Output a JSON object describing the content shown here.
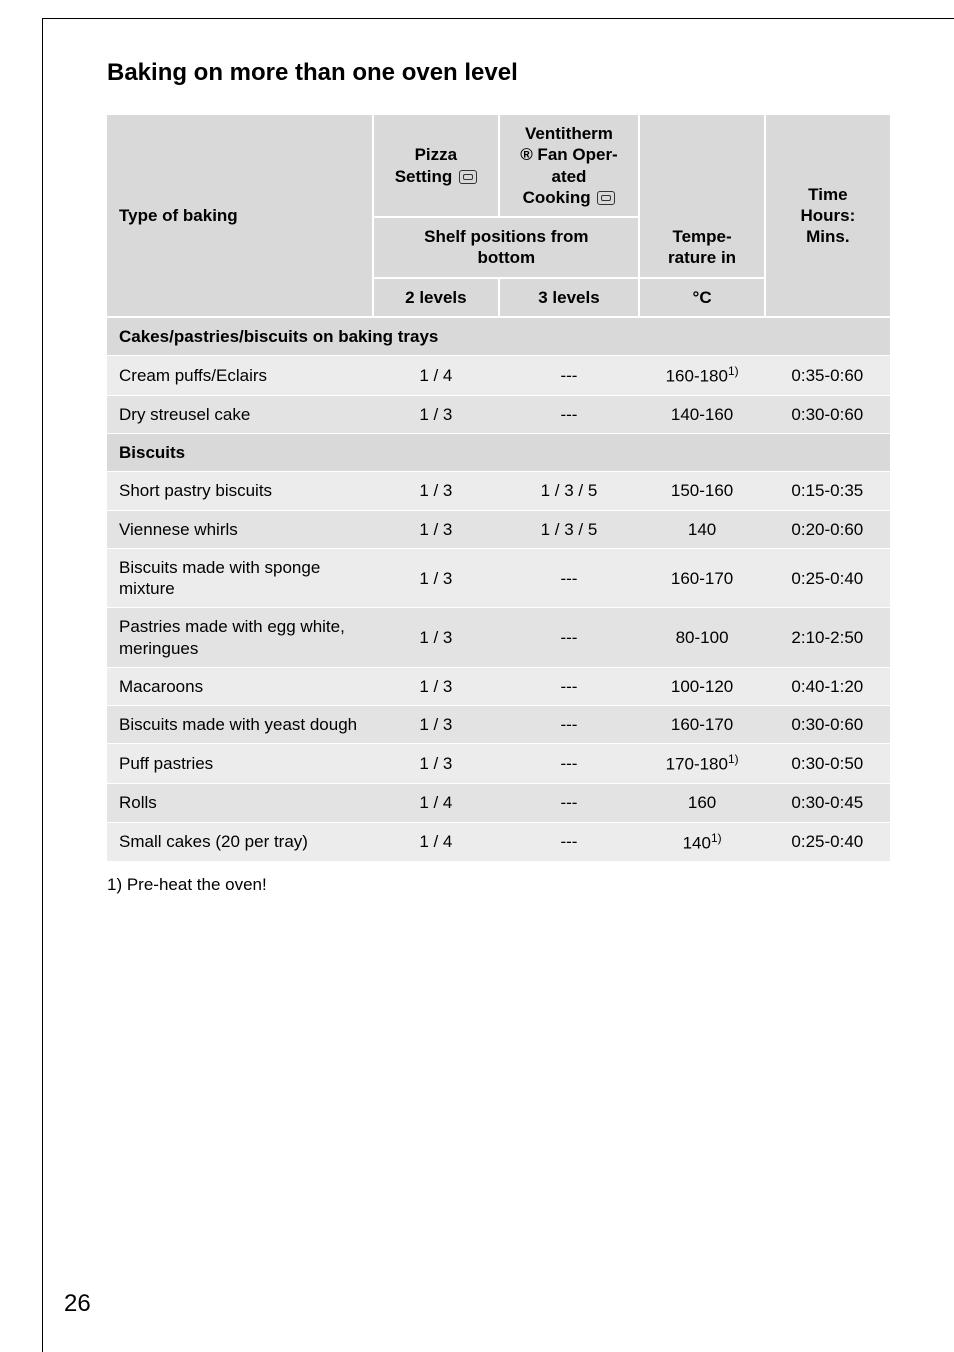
{
  "page": {
    "heading": "Baking on more than one oven level",
    "footnote": "1) Pre-heat the oven!",
    "number": "26"
  },
  "header": {
    "type_of_baking": "Type of baking",
    "pizza_line": "Pizza",
    "setting_word": "Setting",
    "venti_l1": "Ventitherm",
    "venti_l2": "® Fan Oper-",
    "venti_l3": "ated",
    "venti_l4": "Cooking",
    "shelf_line1": "Shelf positions from",
    "shelf_line2": "bottom",
    "temp_l1": "Tempe-",
    "temp_l2": "rature in",
    "temp_l3": "°C",
    "time_l1": "Time",
    "time_l2": "Hours:",
    "time_l3": "Mins.",
    "two_levels": "2 levels",
    "three_levels": "3 levels"
  },
  "sections": {
    "s1": "Cakes/pastries/biscuits on baking trays",
    "s2": "Biscuits"
  },
  "rows": {
    "r1": {
      "name": "Cream puffs/Eclairs",
      "lv2": "1 / 4",
      "lv3": "---",
      "temp": "160-180",
      "sup": "1)",
      "time": "0:35-0:60"
    },
    "r2": {
      "name": "Dry streusel cake",
      "lv2": "1 / 3",
      "lv3": "---",
      "temp": "140-160",
      "time": "0:30-0:60"
    },
    "r3": {
      "name": "Short pastry biscuits",
      "lv2": "1 / 3",
      "lv3": "1 / 3 / 5",
      "temp": "150-160",
      "time": "0:15-0:35"
    },
    "r4": {
      "name": "Viennese whirls",
      "lv2": "1 / 3",
      "lv3": "1 / 3 / 5",
      "temp": "140",
      "time": "0:20-0:60"
    },
    "r5": {
      "name": "Biscuits made with sponge mixture",
      "lv2": "1 / 3",
      "lv3": "---",
      "temp": "160-170",
      "time": "0:25-0:40"
    },
    "r6": {
      "name": "Pastries made with egg white, meringues",
      "lv2": "1 / 3",
      "lv3": "---",
      "temp": "80-100",
      "time": "2:10-2:50"
    },
    "r7": {
      "name": "Macaroons",
      "lv2": "1 / 3",
      "lv3": "---",
      "temp": "100-120",
      "time": "0:40-1:20"
    },
    "r8": {
      "name": "Biscuits made with yeast dough",
      "lv2": "1 / 3",
      "lv3": "---",
      "temp": "160-170",
      "time": "0:30-0:60"
    },
    "r9": {
      "name": "Puff pastries",
      "lv2": "1 / 3",
      "lv3": "---",
      "temp": "170-180",
      "sup": "1)",
      "time": "0:30-0:50"
    },
    "r10": {
      "name": "Rolls",
      "lv2": "1 / 4",
      "lv3": "---",
      "temp": "160",
      "time": "0:30-0:45"
    },
    "r11": {
      "name": "Small cakes (20 per tray)",
      "lv2": "1 / 4",
      "lv3": "---",
      "temp": "140",
      "sup": "1)",
      "time": "0:25-0:40"
    }
  },
  "style": {
    "colors": {
      "header_bg": "#d9d9d9",
      "row_odd": "#ececec",
      "row_even": "#e3e3e3",
      "divider": "#ffffff",
      "text": "#000000"
    },
    "font_sizes": {
      "heading": 24,
      "body": 17,
      "page_num": 24
    },
    "column_widths_pct": [
      34,
      16,
      18,
      16,
      16
    ]
  }
}
